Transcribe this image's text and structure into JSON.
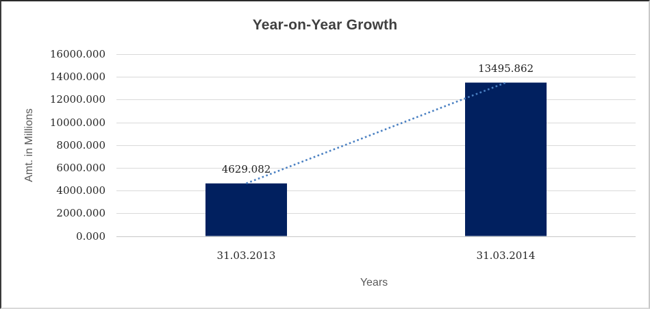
{
  "window": {
    "background": "#ffffff"
  },
  "chart_data": {
    "type": "bar",
    "title": "Year-on-Year Growth",
    "xlabel": "Years",
    "ylabel": "Amt. in Millions",
    "categories": [
      "31.03.2013",
      "31.03.2014"
    ],
    "values": [
      4629.082,
      13495.862
    ],
    "data_labels": [
      "4629.082",
      "13495.862"
    ],
    "ylim": [
      0,
      16000
    ],
    "ytick_interval": 2000,
    "yticks": [
      0,
      2000,
      4000,
      6000,
      8000,
      10000,
      12000,
      14000,
      16000
    ],
    "ytick_labels": [
      "0.000",
      "2000.000",
      "4000.000",
      "6000.000",
      "8000.000",
      "10000.000",
      "12000.000",
      "14000.000",
      "16000.000"
    ],
    "grid": true,
    "legend": "none",
    "colors": {
      "bar": "#01205f",
      "trendline": "#4a80c2",
      "gridline": "#d9d9d9",
      "axis_line": "#c6c6c6",
      "title_text": "#404040",
      "tick_text": "#262626",
      "axis_title_text": "#595959"
    },
    "trendline": {
      "style": "dotted",
      "from": {
        "category": "31.03.2013",
        "value": 4629.082
      },
      "to": {
        "category": "31.03.2014",
        "value": 13495.862
      }
    }
  }
}
